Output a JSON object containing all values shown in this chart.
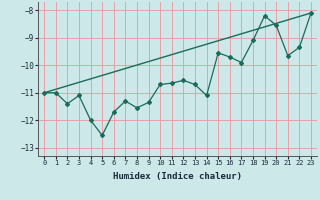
{
  "xlabel": "Humidex (Indice chaleur)",
  "ylabel": "",
  "bg_color": "#cce8e8",
  "grid_color": "#e8a0a8",
  "line_color": "#1a6b5a",
  "x_data": [
    0,
    1,
    2,
    3,
    4,
    5,
    6,
    7,
    8,
    9,
    10,
    11,
    12,
    13,
    14,
    15,
    16,
    17,
    18,
    19,
    20,
    21,
    22,
    23
  ],
  "y_data": [
    -11.0,
    -11.0,
    -11.4,
    -11.1,
    -12.0,
    -12.55,
    -11.7,
    -11.3,
    -11.55,
    -11.35,
    -10.7,
    -10.65,
    -10.55,
    -10.7,
    -11.1,
    -9.55,
    -9.7,
    -9.9,
    -9.1,
    -8.2,
    -8.55,
    -9.65,
    -9.35,
    -8.1
  ],
  "trend_x": [
    0,
    23
  ],
  "trend_y": [
    -11.0,
    -8.1
  ],
  "ylim": [
    -13.3,
    -7.7
  ],
  "xlim": [
    -0.5,
    23.5
  ],
  "yticks": [
    -13,
    -12,
    -11,
    -10,
    -9,
    -8
  ],
  "xticks": [
    0,
    1,
    2,
    3,
    4,
    5,
    6,
    7,
    8,
    9,
    10,
    11,
    12,
    13,
    14,
    15,
    16,
    17,
    18,
    19,
    20,
    21,
    22,
    23
  ]
}
